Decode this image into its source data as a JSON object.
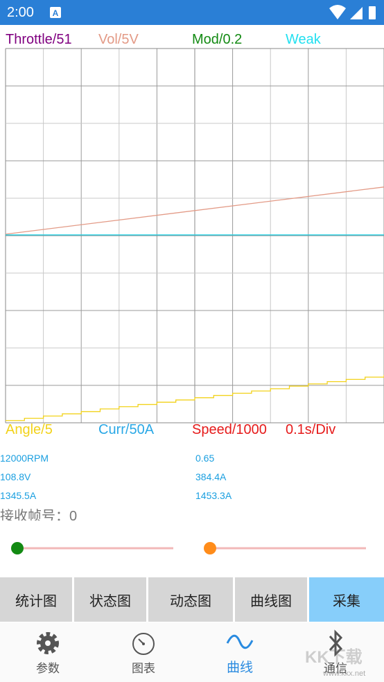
{
  "status_bar": {
    "time": "2:00"
  },
  "scope": {
    "top_labels": [
      {
        "text": "Throttle/51",
        "color": "#800080"
      },
      {
        "text": "Vol/5V",
        "color": "#e39a86"
      },
      {
        "text": "Mod/0.2",
        "color": "#138a13"
      },
      {
        "text": "Weak",
        "color": "#22e0f0"
      }
    ],
    "bottom_labels": [
      {
        "text": "Angle/5",
        "color": "#f2d21a"
      },
      {
        "text": "Curr/50A",
        "color": "#2aa8e6"
      },
      {
        "text": "Speed/1000",
        "color": "#e61a1a"
      },
      {
        "text": "0.1s/Div",
        "color": "#e61a1a"
      }
    ],
    "xlim": [
      0,
      10
    ],
    "ylim": [
      0,
      10
    ],
    "traces": [
      {
        "color": "#e39a86",
        "step": false,
        "x": [
          0,
          10
        ],
        "y": [
          5.04,
          6.3
        ]
      },
      {
        "color": "#22d3e6",
        "step": false,
        "x": [
          0,
          10
        ],
        "y": [
          5.02,
          5.02
        ]
      },
      {
        "color": "#f2d21a",
        "step": true,
        "x": [
          0,
          0.5,
          1,
          1.5,
          2,
          2.5,
          3,
          3.5,
          4,
          4.5,
          5,
          5.5,
          6,
          6.5,
          7,
          7.5,
          8,
          8.5,
          9,
          9.5,
          10
        ],
        "y": [
          0.06,
          0.12,
          0.18,
          0.24,
          0.3,
          0.37,
          0.43,
          0.49,
          0.55,
          0.61,
          0.67,
          0.73,
          0.79,
          0.85,
          0.91,
          0.98,
          1.04,
          1.1,
          1.16,
          1.22,
          1.28
        ]
      }
    ]
  },
  "stats": {
    "rows": [
      [
        "12000RPM",
        "0.65"
      ],
      [
        "108.8V",
        "384.4A"
      ],
      [
        "1345.5A",
        "1453.3A"
      ]
    ]
  },
  "frame_label": "接收帧号：0",
  "buttons": [
    "统计图",
    "状态图",
    "动态图",
    "曲线图",
    "采集"
  ],
  "nav": [
    "参数",
    "图表",
    "曲线",
    "通信"
  ],
  "watermark": {
    "brand": "KK下载",
    "url": "www.kkx.net"
  }
}
